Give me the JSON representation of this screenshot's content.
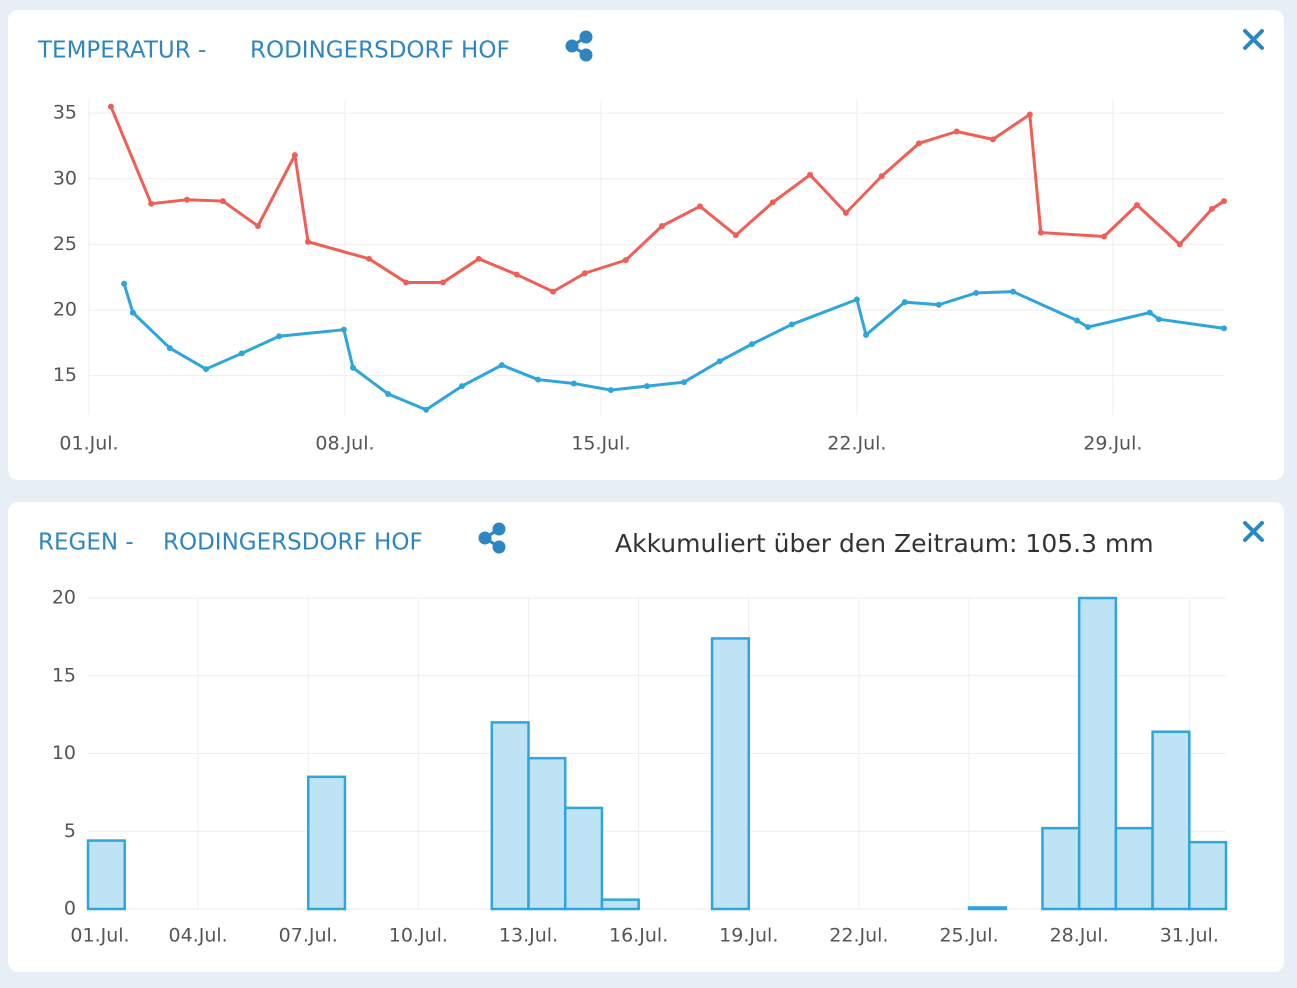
{
  "chart_data": [
    {
      "type": "line",
      "title": "TEMPERATUR -",
      "subtitle": "RODINGERSDORF HOF",
      "xlim": [
        1,
        32.04
      ],
      "ylim": [
        12,
        36
      ],
      "xticks": [
        {
          "value": 1,
          "label": "01.Jul."
        },
        {
          "value": 8,
          "label": "08.Jul."
        },
        {
          "value": 15,
          "label": "15.Jul."
        },
        {
          "value": 22,
          "label": "22.Jul."
        },
        {
          "value": 29,
          "label": "29.Jul."
        }
      ],
      "yticks": [
        15,
        20,
        25,
        30,
        35
      ],
      "grid": true,
      "series": [
        {
          "color": "#ef5f55",
          "x": [
            1.6,
            2.7,
            3.68,
            4.66,
            5.62,
            6.63,
            6.99,
            8.66,
            9.67,
            10.68,
            11.66,
            12.7,
            13.69,
            14.56,
            15.68,
            16.67,
            17.71,
            18.69,
            19.7,
            20.72,
            21.7,
            22.68,
            23.7,
            24.73,
            25.72,
            26.73,
            27.03,
            28.76,
            29.66,
            30.83,
            31.71,
            32.04
          ],
          "values": [
            35.5,
            28.1,
            28.4,
            28.3,
            26.4,
            31.8,
            25.2,
            23.9,
            22.1,
            22.1,
            23.9,
            22.7,
            21.4,
            22.8,
            23.8,
            26.4,
            27.9,
            25.7,
            28.2,
            30.3,
            27.4,
            30.2,
            32.7,
            33.6,
            33.0,
            34.9,
            25.9,
            25.6,
            28.0,
            25.0,
            27.7,
            28.3
          ]
        },
        {
          "color": "#2ea5dc",
          "x": [
            1.96,
            2.2,
            3.21,
            4.2,
            5.18,
            6.2,
            7.97,
            8.22,
            9.18,
            10.22,
            11.2,
            12.29,
            13.28,
            14.26,
            15.27,
            16.26,
            17.27,
            18.25,
            19.13,
            20.22,
            22.0,
            22.25,
            23.31,
            24.24,
            25.26,
            26.27,
            28.02,
            28.32,
            30.01,
            30.26,
            32.04
          ],
          "values": [
            22.0,
            19.8,
            17.1,
            15.5,
            16.7,
            18.0,
            18.5,
            15.6,
            13.6,
            12.4,
            14.2,
            15.8,
            14.7,
            14.4,
            13.9,
            14.2,
            14.5,
            16.1,
            17.4,
            18.9,
            20.8,
            18.1,
            20.6,
            20.4,
            21.3,
            21.4,
            19.2,
            18.7,
            19.8,
            19.3,
            18.6
          ]
        }
      ]
    },
    {
      "type": "bar",
      "title": "REGEN -",
      "subtitle": "RODINGERSDORF HOF",
      "annotation": "Akkumuliert über den Zeitraum: 105.3 mm",
      "categories": [
        "01.Jul.",
        null,
        null,
        "04.Jul.",
        null,
        null,
        "07.Jul.",
        null,
        null,
        "10.Jul.",
        null,
        null,
        "13.Jul.",
        null,
        null,
        "16.Jul.",
        null,
        null,
        "19.Jul.",
        null,
        null,
        "22.Jul.",
        null,
        null,
        "25.Jul.",
        null,
        null,
        "28.Jul.",
        null,
        null,
        "31.Jul."
      ],
      "values": [
        4.4,
        0,
        0,
        0,
        0,
        0,
        8.5,
        0,
        0,
        0,
        0,
        12.0,
        9.7,
        6.5,
        0.6,
        0,
        0,
        17.4,
        0,
        0,
        0,
        0,
        0,
        0,
        0.1,
        0,
        5.2,
        20.0,
        5.2,
        11.4,
        4.3
      ],
      "color": "#bde3f5",
      "edge_color": "#2ea5dc",
      "ylim": [
        0,
        20
      ],
      "yticks": [
        0,
        5,
        10,
        15,
        20
      ],
      "grid": true
    }
  ]
}
